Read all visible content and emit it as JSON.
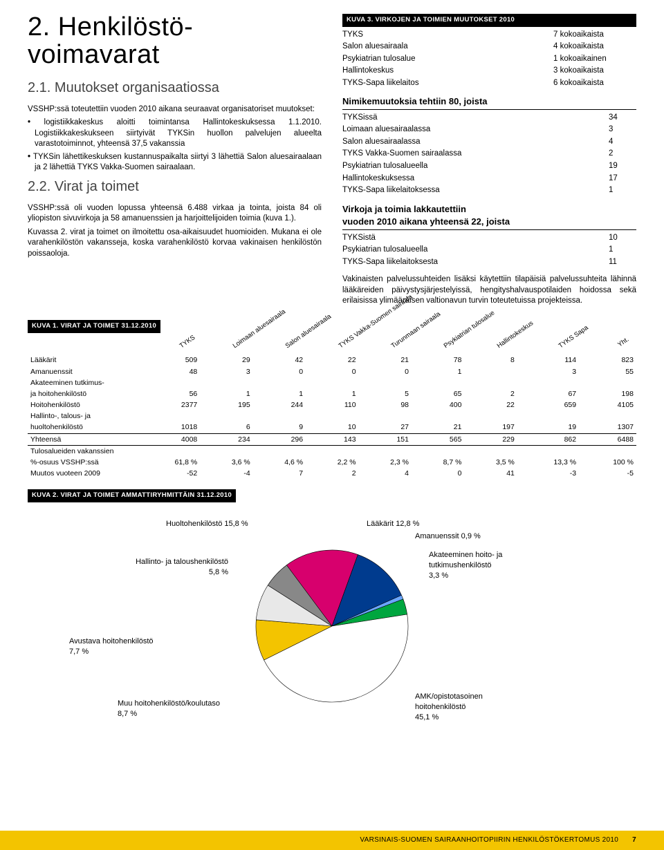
{
  "title": "2. Henkilöstö-\nvoimavarat",
  "s21": {
    "heading": "2.1. Muutokset organisaatiossa",
    "intro": "VSSHP:ssä toteutettiin vuoden 2010 aikana seuraavat organisatoriset muutokset:",
    "bullets": [
      "logistiikkakeskus aloitti toimintansa Hallintokeskuksessa 1.1.2010. Logistiikkakeskukseen siirtyivät TYKSin huollon palvelujen alueelta varastotoiminnot, yhteensä 37,5 vakanssia",
      "TYKSin lähettikeskuksen kustannuspaikalta siirtyi 3 lähettiä Salon aluesairaalaan ja 2 lähettiä TYKS Vakka-Suomen sairaalaan."
    ]
  },
  "s22": {
    "heading": "2.2. Virat ja toimet",
    "para1": "VSSHP:ssä oli vuoden lopussa yhteensä 6.488 virkaa ja tointa, joista 84 oli yliopiston sivuvirkoja ja 58 amanuenssien ja harjoittelijoiden toimia (kuva 1.).",
    "para2": "Kuvassa 2. virat ja toimet on ilmoitettu osa-aikaisuudet huomioiden. Mukana ei ole varahenkilöstön vakansseja, koska varahenkilöstö korvaa vakinaisen henkilöstön poissaoloja."
  },
  "kuva3": {
    "header": "KUVA 3. VIRKOJEN JA TOIMIEN MUUTOKSET 2010",
    "rows": [
      {
        "l": "TYKS",
        "v": "7 kokoaikaista"
      },
      {
        "l": "Salon aluesairaala",
        "v": "4 kokoaikaista"
      },
      {
        "l": "Psykiatrian tulosalue",
        "v": "1 kokoaikainen"
      },
      {
        "l": "Hallintokeskus",
        "v": "3 kokoaikaista"
      },
      {
        "l": "TYKS-Sapa liikelaitos",
        "v": "6 kokoaikaista"
      }
    ],
    "sub1_title": "Nimikemuutoksia tehtiin 80, joista",
    "sub1_rows": [
      {
        "l": "TYKSissä",
        "v": "34"
      },
      {
        "l": "Loimaan aluesairaalassa",
        "v": "3"
      },
      {
        "l": "Salon aluesairaalassa",
        "v": "4"
      },
      {
        "l": "TYKS Vakka-Suomen sairaalassa",
        "v": "2"
      },
      {
        "l": "Psykiatrian tulosalueella",
        "v": "19"
      },
      {
        "l": "Hallintokeskuksessa",
        "v": "17"
      },
      {
        "l": "TYKS-Sapa liikelaitoksessa",
        "v": "1"
      }
    ],
    "sub2_title_a": "Virkoja ja toimia lakkautettiin",
    "sub2_title_b": "vuoden 2010 aikana yhteensä 22, joista",
    "sub2_rows": [
      {
        "l": "TYKSistä",
        "v": "10"
      },
      {
        "l": "Psykiatrian tulosalueella",
        "v": "1"
      },
      {
        "l": "TYKS-Sapa liikelaitoksesta",
        "v": "11"
      }
    ],
    "para": "Vakinaisten palvelussuhteiden lisäksi käytettiin tilapäisiä palvelussuhteita lähinnä lääkäreiden päivystysjärjestelyissä, hengityshalvauspotilaiden hoidossa sekä erilaisissa ylimääräisen valtionavun turvin toteutetuissa projekteissa."
  },
  "kuva1": {
    "header": "KUVA 1. VIRAT JA TOIMET 31.12.2010",
    "columns": [
      "TYKS",
      "Loimaan aluesairaala",
      "Salon aluesairaala",
      "TYKS Vakka-Suomen sairaala",
      "Turunmaan sairaala",
      "Psykiatrian tulosalue",
      "Hallintokeskus",
      "TYKS Sapa",
      "Yht."
    ],
    "rows": [
      {
        "l": "Lääkärit",
        "c": [
          "509",
          "29",
          "42",
          "22",
          "21",
          "78",
          "8",
          "114",
          "823"
        ]
      },
      {
        "l": "Amanuenssit",
        "c": [
          "48",
          "3",
          "0",
          "0",
          "0",
          "1",
          "",
          "3",
          "55"
        ]
      },
      {
        "l": "Akateeminen tutkimus-",
        "c": [
          "",
          "",
          "",
          "",
          "",
          "",
          "",
          "",
          ""
        ]
      },
      {
        "l": "ja hoitohenkilöstö",
        "c": [
          "56",
          "1",
          "1",
          "1",
          "5",
          "65",
          "2",
          "67",
          "198"
        ]
      },
      {
        "l": "Hoitohenkilöstö",
        "c": [
          "2377",
          "195",
          "244",
          "110",
          "98",
          "400",
          "22",
          "659",
          "4105"
        ]
      },
      {
        "l": "Hallinto-, talous- ja",
        "c": [
          "",
          "",
          "",
          "",
          "",
          "",
          "",
          "",
          ""
        ]
      },
      {
        "l": "huoltohenkilöstö",
        "c": [
          "1018",
          "6",
          "9",
          "10",
          "27",
          "21",
          "197",
          "19",
          "1307"
        ]
      }
    ],
    "total": {
      "l": "Yhteensä",
      "c": [
        "4008",
        "234",
        "296",
        "143",
        "151",
        "565",
        "229",
        "862",
        "6488"
      ]
    },
    "extra": [
      {
        "l": "Tulosalueiden vakanssien",
        "c": [
          "",
          "",
          "",
          "",
          "",
          "",
          "",
          "",
          ""
        ]
      },
      {
        "l": "%-osuus VSSHP:ssä",
        "c": [
          "61,8 %",
          "3,6 %",
          "4,6 %",
          "2,2 %",
          "2,3 %",
          "8,7 %",
          "3,5 %",
          "13,3 %",
          "100 %"
        ]
      },
      {
        "l": "Muutos vuoteen 2009",
        "c": [
          "-52",
          "-4",
          "7",
          "2",
          "4",
          "0",
          "41",
          "-3",
          "-5"
        ]
      }
    ]
  },
  "kuva2": {
    "header": "KUVA 2. VIRAT JA TOIMET AMMATTIRYHMITTÄIN 31.12.2010",
    "slices": [
      {
        "label": "Lääkärit 12,8 %",
        "value": 12.8,
        "color": "#003b8e"
      },
      {
        "label": "Amanuenssit 0,9 %",
        "value": 0.9,
        "color": "#6aa6ff"
      },
      {
        "label": "Akateeminen hoito- ja tutkimushenkilöstö 3,3 %",
        "value": 3.3,
        "color": "#00a63f"
      },
      {
        "label": "AMK/opistotasoinen hoitohenkilöstö 45,1 %",
        "value": 45.1,
        "color": "#ffffff"
      },
      {
        "label": "Muu hoitohenkilöstö/koulutaso 8,7 %",
        "value": 8.7,
        "color": "#f3c400"
      },
      {
        "label": "Avustava hoitohenkilöstö 7,7 %",
        "value": 7.7,
        "color": "#e8e8e8"
      },
      {
        "label": "Hallinto- ja taloushenkilöstö 5,8 %",
        "value": 5.8,
        "color": "#888888"
      },
      {
        "label": "Huoltohenkilöstö 15,8 %",
        "value": 15.8,
        "color": "#d7006d"
      }
    ],
    "labels": {
      "huolto": "Huoltohenkilöstö 15,8 %",
      "laak": "Lääkärit 12,8 %",
      "aman": "Amanuenssit 0,9 %",
      "akat_a": "Akateeminen hoito- ja",
      "akat_b": "tutkimushenkilöstö",
      "akat_c": "3,3 %",
      "hallinto_a": "Hallinto- ja taloushenkilöstö",
      "hallinto_b": "5,8 %",
      "avust_a": "Avustava hoitohenkilöstö",
      "avust_b": "7,7 %",
      "muu_a": "Muu hoitohenkilöstö/koulutaso",
      "muu_b": "8,7 %",
      "amk_a": "AMK/opistotasoinen",
      "amk_b": "hoitohenkilöstö",
      "amk_c": "45,1 %"
    }
  },
  "footer": {
    "text": "VARSINAIS-SUOMEN SAIRAANHOITOPIIRIN HENKILÖSTÖKERTOMUS 2010",
    "page": "7"
  }
}
